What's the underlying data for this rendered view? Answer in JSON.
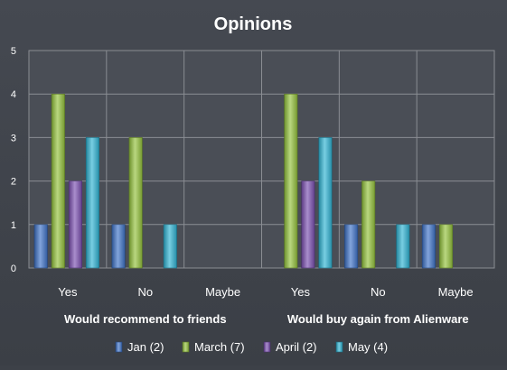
{
  "chart_data": {
    "type": "bar",
    "title": "Opinions",
    "ylim": [
      0,
      5
    ],
    "yticks": [
      "0",
      "1",
      "2",
      "3",
      "4",
      "5"
    ],
    "grid": true,
    "legend_position": "bottom",
    "categories": [
      "Yes",
      "No",
      "Maybe",
      "Yes",
      "No",
      "Maybe"
    ],
    "groups": [
      {
        "label": "Would recommend to friends",
        "categories": [
          "Yes",
          "No",
          "Maybe"
        ]
      },
      {
        "label": "Would buy again from Alienware",
        "categories": [
          "Yes",
          "No",
          "Maybe"
        ]
      }
    ],
    "series": [
      {
        "name": "Jan (2)",
        "color": "#3f73c8",
        "values": [
          1,
          1,
          0,
          0,
          1,
          1
        ]
      },
      {
        "name": "March (7)",
        "color": "#93c23c",
        "values": [
          4,
          3,
          0,
          4,
          2,
          1
        ]
      },
      {
        "name": "April (2)",
        "color": "#7a4fb0",
        "values": [
          2,
          0,
          0,
          2,
          0,
          0
        ]
      },
      {
        "name": "May (4)",
        "color": "#2fb3d3",
        "values": [
          3,
          1,
          0,
          3,
          1,
          0
        ]
      }
    ]
  }
}
